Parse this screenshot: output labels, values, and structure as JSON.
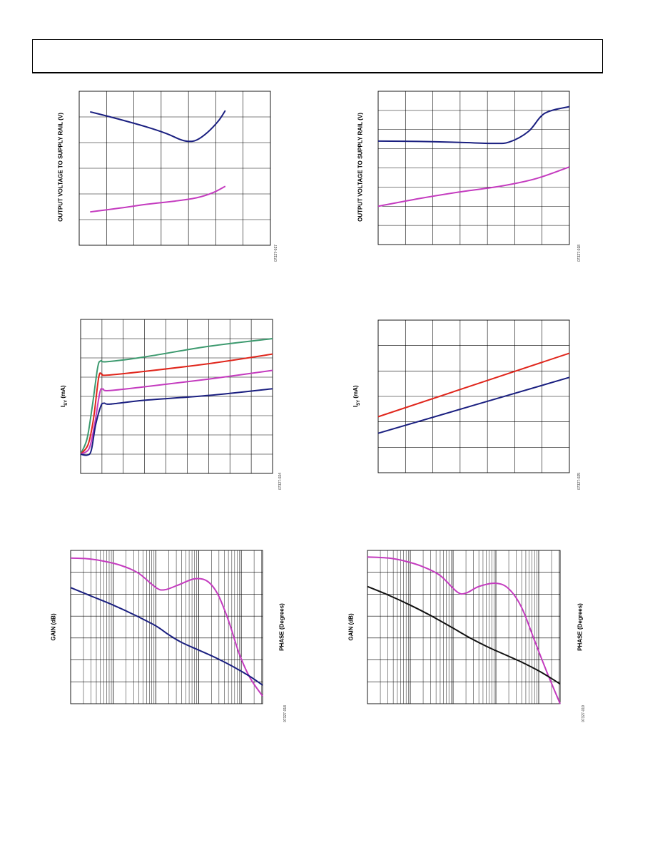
{
  "page": {
    "header_text": ""
  },
  "chart_data": [
    {
      "id": "c1",
      "type": "line",
      "ylabel": "OUTPUT VOLTAGE TO SUPPLY RAIL (V)",
      "figure_id": "07327-017",
      "xlim": [
        0,
        7
      ],
      "ylim": [
        0,
        6
      ],
      "series": [
        {
          "color": "#1a1f80",
          "points": [
            [
              0.4,
              5.2
            ],
            [
              1.5,
              4.9
            ],
            [
              2.5,
              4.6
            ],
            [
              3.2,
              4.35
            ],
            [
              3.7,
              4.12
            ],
            [
              4.0,
              4.05
            ],
            [
              4.3,
              4.1
            ],
            [
              4.7,
              4.4
            ],
            [
              5.1,
              4.85
            ],
            [
              5.35,
              5.25
            ]
          ]
        },
        {
          "color": "#c43bbf",
          "points": [
            [
              0.4,
              1.3
            ],
            [
              1.5,
              1.45
            ],
            [
              2.5,
              1.6
            ],
            [
              3.5,
              1.72
            ],
            [
              4.3,
              1.85
            ],
            [
              4.9,
              2.05
            ],
            [
              5.35,
              2.3
            ]
          ]
        }
      ]
    },
    {
      "id": "c2",
      "type": "line",
      "ylabel": "OUTPUT VOLTAGE TO SUPPLY RAIL (V)",
      "figure_id": "07327-018",
      "xlim": [
        0,
        7
      ],
      "ylim": [
        0,
        8
      ],
      "series": [
        {
          "color": "#1a1f80",
          "points": [
            [
              0,
              5.4
            ],
            [
              1.5,
              5.38
            ],
            [
              3,
              5.33
            ],
            [
              4.2,
              5.28
            ],
            [
              4.8,
              5.35
            ],
            [
              5.5,
              5.9
            ],
            [
              6.1,
              6.85
            ],
            [
              7,
              7.2
            ]
          ]
        },
        {
          "color": "#c43bbf",
          "points": [
            [
              0,
              2.0
            ],
            [
              1.5,
              2.4
            ],
            [
              3,
              2.75
            ],
            [
              4.5,
              3.05
            ],
            [
              5.8,
              3.45
            ],
            [
              7,
              4.05
            ]
          ]
        }
      ]
    },
    {
      "id": "c3",
      "type": "line",
      "ylabel": "ISY (mA)",
      "ylabel_main": "I",
      "ylabel_sub": "SY",
      "ylabel_rest": " (mA)",
      "figure_id": "07327-024",
      "xlim": [
        0,
        9
      ],
      "ylim": [
        0,
        8
      ],
      "series": [
        {
          "color": "#3d9a6f",
          "points": [
            [
              0,
              1.0
            ],
            [
              0.3,
              1.8
            ],
            [
              0.55,
              3.5
            ],
            [
              0.8,
              5.5
            ],
            [
              0.95,
              5.85
            ],
            [
              1.2,
              5.8
            ],
            [
              3,
              6.05
            ],
            [
              6,
              6.6
            ],
            [
              9,
              7.0
            ]
          ]
        },
        {
          "color": "#e0261c",
          "points": [
            [
              0,
              1.0
            ],
            [
              0.35,
              1.5
            ],
            [
              0.6,
              2.8
            ],
            [
              0.85,
              5.0
            ],
            [
              1.0,
              5.15
            ],
            [
              1.2,
              5.1
            ],
            [
              3,
              5.3
            ],
            [
              6,
              5.7
            ],
            [
              9,
              6.2
            ]
          ]
        },
        {
          "color": "#c43bbf",
          "points": [
            [
              0,
              1.0
            ],
            [
              0.4,
              1.3
            ],
            [
              0.65,
              2.5
            ],
            [
              0.9,
              4.2
            ],
            [
              1.05,
              4.38
            ],
            [
              1.3,
              4.3
            ],
            [
              3,
              4.5
            ],
            [
              6,
              4.9
            ],
            [
              9,
              5.35
            ]
          ]
        },
        {
          "color": "#1a1f80",
          "points": [
            [
              0,
              1.0
            ],
            [
              0.3,
              0.95
            ],
            [
              0.5,
              1.2
            ],
            [
              0.7,
              2.5
            ],
            [
              0.95,
              3.5
            ],
            [
              1.1,
              3.65
            ],
            [
              1.4,
              3.6
            ],
            [
              3,
              3.8
            ],
            [
              6,
              4.05
            ],
            [
              9,
              4.4
            ]
          ]
        }
      ]
    },
    {
      "id": "c4",
      "type": "line",
      "ylabel": "ISY (mA)",
      "ylabel_main": "I",
      "ylabel_sub": "SY",
      "ylabel_rest": " (mA)",
      "figure_id": "07327-025",
      "xlim": [
        0,
        7
      ],
      "ylim": [
        0,
        6
      ],
      "series": [
        {
          "color": "#e0261c",
          "points": [
            [
              0,
              2.2
            ],
            [
              7,
              4.7
            ]
          ]
        },
        {
          "color": "#1a1f80",
          "points": [
            [
              0,
              1.55
            ],
            [
              7,
              3.75
            ]
          ]
        }
      ]
    },
    {
      "id": "c5",
      "type": "line",
      "xscale": "log",
      "ylabel": "GAIN (dB)",
      "ylabel_right": "PHASE (Degrees)",
      "figure_id": "07327-018",
      "xlim": [
        0,
        4.5
      ],
      "ylim": [
        0,
        7
      ],
      "series": [
        {
          "color": "#c43bbf",
          "points": [
            [
              0,
              6.65
            ],
            [
              0.4,
              6.62
            ],
            [
              0.8,
              6.5
            ],
            [
              1.2,
              6.3
            ],
            [
              1.6,
              5.95
            ],
            [
              2.0,
              5.3
            ],
            [
              2.2,
              5.2
            ],
            [
              2.5,
              5.4
            ],
            [
              2.9,
              5.7
            ],
            [
              3.2,
              5.6
            ],
            [
              3.45,
              5.0
            ],
            [
              3.7,
              3.8
            ],
            [
              3.95,
              2.3
            ],
            [
              4.2,
              1.2
            ],
            [
              4.5,
              0.35
            ]
          ]
        },
        {
          "color": "#1a1f80",
          "points": [
            [
              0,
              5.3
            ],
            [
              0.5,
              4.9
            ],
            [
              1.0,
              4.5
            ],
            [
              1.5,
              4.05
            ],
            [
              2.0,
              3.55
            ],
            [
              2.3,
              3.15
            ],
            [
              2.6,
              2.8
            ],
            [
              3.0,
              2.45
            ],
            [
              3.4,
              2.1
            ],
            [
              3.8,
              1.7
            ],
            [
              4.2,
              1.25
            ],
            [
              4.5,
              0.85
            ]
          ]
        }
      ]
    },
    {
      "id": "c6",
      "type": "line",
      "xscale": "log",
      "ylabel": "GAIN (dB)",
      "ylabel_right": "PHASE (Degrees)",
      "figure_id": "07327-019",
      "xlim": [
        0,
        4.5
      ],
      "ylim": [
        0,
        7
      ],
      "series": [
        {
          "color": "#c43bbf",
          "points": [
            [
              0,
              6.7
            ],
            [
              0.5,
              6.65
            ],
            [
              0.9,
              6.5
            ],
            [
              1.3,
              6.25
            ],
            [
              1.7,
              5.85
            ],
            [
              2.1,
              5.1
            ],
            [
              2.3,
              5.05
            ],
            [
              2.6,
              5.35
            ],
            [
              3.0,
              5.5
            ],
            [
              3.3,
              5.25
            ],
            [
              3.6,
              4.4
            ],
            [
              3.9,
              2.9
            ],
            [
              4.2,
              1.4
            ],
            [
              4.5,
              0.0
            ]
          ]
        },
        {
          "color": "#111111",
          "points": [
            [
              0,
              5.35
            ],
            [
              0.5,
              4.95
            ],
            [
              1.0,
              4.5
            ],
            [
              1.5,
              4.0
            ],
            [
              2.0,
              3.45
            ],
            [
              2.4,
              3.0
            ],
            [
              2.8,
              2.6
            ],
            [
              3.2,
              2.25
            ],
            [
              3.6,
              1.9
            ],
            [
              4.0,
              1.5
            ],
            [
              4.3,
              1.15
            ],
            [
              4.5,
              0.9
            ]
          ]
        }
      ]
    }
  ]
}
